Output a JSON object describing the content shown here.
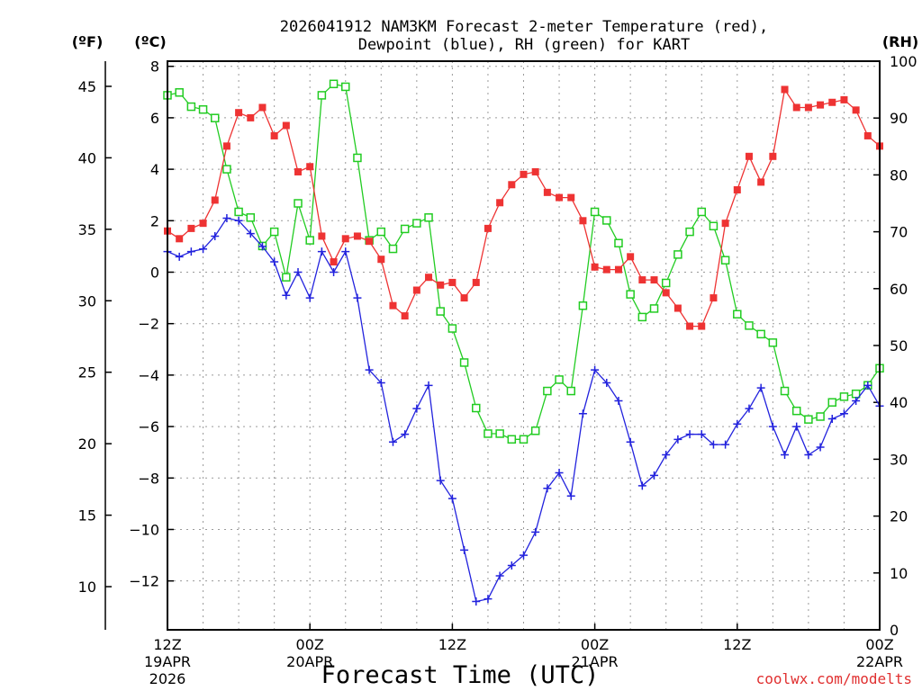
{
  "chart_data": {
    "type": "line",
    "title": [
      "2026041912 NAM3KM Forecast 2-meter Temperature (red),",
      "Dewpoint (blue), RH (green) for KART"
    ],
    "xlabel": "Forecast Time (UTC)",
    "credit": "coolwx.com/modelts",
    "units": {
      "fahrenheit": "(ºF)",
      "celsius": "(ºC)",
      "rh": "(RH)"
    },
    "hours": [
      0,
      1,
      2,
      3,
      4,
      5,
      6,
      7,
      8,
      9,
      10,
      11,
      12,
      13,
      14,
      15,
      16,
      17,
      18,
      19,
      20,
      21,
      22,
      23,
      24,
      25,
      26,
      27,
      28,
      29,
      30,
      31,
      32,
      33,
      34,
      35,
      36,
      37,
      38,
      39,
      40,
      41,
      42,
      43,
      44,
      45,
      46,
      47,
      48,
      49,
      50,
      51,
      52,
      53,
      54,
      55,
      56,
      57,
      58,
      59,
      60
    ],
    "x_ticks": [
      {
        "hour": 0,
        "lines": [
          "12Z",
          "19APR",
          "2026"
        ]
      },
      {
        "hour": 12,
        "lines": [
          "00Z",
          "20APR"
        ]
      },
      {
        "hour": 24,
        "lines": [
          "12Z"
        ]
      },
      {
        "hour": 36,
        "lines": [
          "00Z",
          "21APR"
        ]
      },
      {
        "hour": 48,
        "lines": [
          "12Z"
        ]
      },
      {
        "hour": 60,
        "lines": [
          "00Z",
          "22APR"
        ]
      }
    ],
    "celsius_axis": {
      "range": [
        -13.9,
        8.2
      ],
      "ticks": [
        8,
        6,
        4,
        2,
        0,
        -2,
        -4,
        -6,
        -8,
        -10,
        -12
      ],
      "tick_labels": [
        "8",
        "6",
        "4",
        "2",
        "0",
        "−2",
        "−4",
        "−6",
        "−8",
        "−10",
        "−12"
      ]
    },
    "fahrenheit_axis": {
      "ticks": [
        45,
        40,
        35,
        30,
        25,
        20,
        15,
        10
      ]
    },
    "rh_axis": {
      "range": [
        0,
        100
      ],
      "ticks": [
        100,
        90,
        80,
        70,
        60,
        50,
        40,
        30,
        20,
        10,
        0
      ]
    },
    "series": [
      {
        "name": "2-meter Temperature",
        "unit": "°C",
        "color": "#ee3333",
        "marker": "filled-square",
        "values": [
          1.6,
          1.3,
          1.7,
          1.9,
          2.8,
          4.9,
          6.2,
          6.0,
          6.4,
          5.3,
          5.7,
          3.9,
          4.1,
          1.4,
          0.4,
          1.3,
          1.4,
          1.2,
          0.5,
          -1.3,
          -1.7,
          -0.7,
          -0.2,
          -0.5,
          -0.4,
          -1.0,
          -0.4,
          1.7,
          2.7,
          3.4,
          3.8,
          3.9,
          3.1,
          2.9,
          2.9,
          2.0,
          0.2,
          0.1,
          0.1,
          0.6,
          -0.3,
          -0.3,
          -0.8,
          -1.4,
          -2.1,
          -2.1,
          -1.0,
          1.9,
          3.2,
          4.5,
          3.5,
          4.5,
          7.1,
          6.4,
          6.4,
          6.5,
          6.6,
          6.7,
          6.3,
          5.3,
          4.9
        ]
      },
      {
        "name": "Dewpoint",
        "unit": "°C",
        "color": "#2222dd",
        "marker": "plus",
        "values": [
          0.8,
          0.6,
          0.8,
          0.9,
          1.4,
          2.1,
          2.0,
          1.5,
          1.0,
          0.4,
          -0.9,
          0.0,
          -1.0,
          0.8,
          0.0,
          0.8,
          -1.0,
          -3.8,
          -4.3,
          -6.6,
          -6.3,
          -5.3,
          -4.4,
          -8.1,
          -8.8,
          -10.8,
          -12.8,
          -12.7,
          -11.8,
          -11.4,
          -11.0,
          -10.1,
          -8.4,
          -7.8,
          -8.7,
          -5.5,
          -3.8,
          -4.3,
          -5.0,
          -6.6,
          -8.3,
          -7.9,
          -7.1,
          -6.5,
          -6.3,
          -6.3,
          -6.7,
          -6.7,
          -5.9,
          -5.3,
          -4.5,
          -6.0,
          -7.1,
          -6.0,
          -7.1,
          -6.8,
          -5.7,
          -5.5,
          -5.0,
          -4.4,
          -5.2
        ]
      },
      {
        "name": "Relative Humidity",
        "unit": "%",
        "color": "#22cc22",
        "marker": "open-square",
        "values": [
          94,
          94.5,
          92,
          91.5,
          90,
          81,
          73.5,
          72.5,
          67.5,
          70,
          62,
          75,
          68.5,
          94,
          96,
          95.5,
          83,
          68.5,
          70,
          67,
          70.5,
          71.5,
          72.5,
          56,
          53,
          47,
          39,
          34.5,
          34.5,
          33.5,
          33.5,
          35,
          42,
          44,
          42,
          57,
          73.5,
          72,
          68,
          59,
          55,
          56.5,
          61,
          66,
          70,
          73.5,
          71,
          65,
          55.5,
          53.5,
          52,
          50.5,
          42,
          38.5,
          37,
          37.5,
          40,
          41,
          41.5,
          43,
          46
        ]
      }
    ]
  }
}
